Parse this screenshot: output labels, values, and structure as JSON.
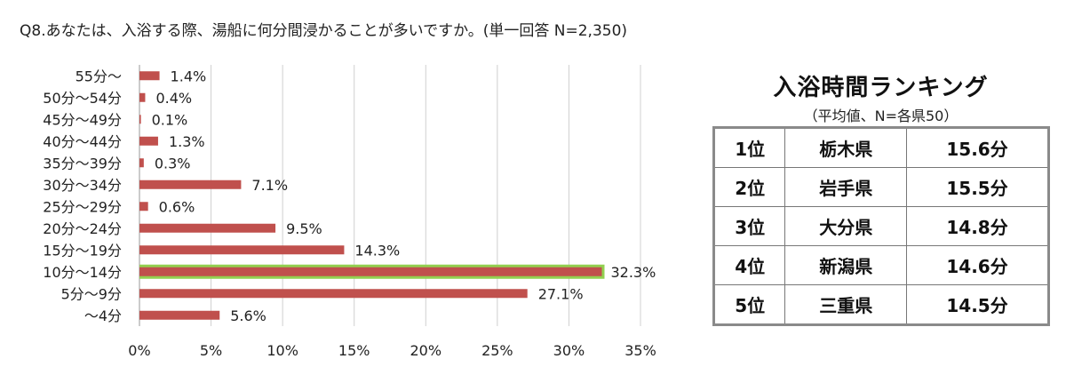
{
  "question": "Q8.あなたは、入浴する際、湯船に何分間浸かることが多いですか。(単一回答 N=2,350)",
  "chart_data": {
    "type": "bar",
    "orientation": "horizontal",
    "categories": [
      "55分～",
      "50分～54分",
      "45分～49分",
      "40分～44分",
      "35分～39分",
      "30分～34分",
      "25分～29分",
      "20分～24分",
      "15分～19分",
      "10分～14分",
      "5分～9分",
      "～4分"
    ],
    "values": [
      1.4,
      0.4,
      0.1,
      1.3,
      0.3,
      7.1,
      0.6,
      9.5,
      14.3,
      32.3,
      27.1,
      5.6
    ],
    "labels": [
      "1.4%",
      "0.4%",
      "0.1%",
      "1.3%",
      "0.3%",
      "7.1%",
      "0.6%",
      "9.5%",
      "14.3%",
      "32.3%",
      "27.1%",
      "5.6%"
    ],
    "xlim": [
      0,
      35
    ],
    "xticks": [
      0,
      5,
      10,
      15,
      20,
      25,
      30,
      35
    ],
    "xtick_labels": [
      "0%",
      "5%",
      "10%",
      "15%",
      "20%",
      "25%",
      "30%",
      "35%"
    ],
    "highlight_category": "10分～14分",
    "grid": true,
    "colors": {
      "bar": "#c0504d",
      "highlight_outline": "#92d050",
      "grid": "#d0d0d0"
    }
  },
  "ranking": {
    "title": "入浴時間ランキング",
    "subtitle": "（平均値、N=各県50）",
    "rows": [
      {
        "rank": "1位",
        "prefecture": "栃木県",
        "time": "15.6分"
      },
      {
        "rank": "2位",
        "prefecture": "岩手県",
        "time": "15.5分"
      },
      {
        "rank": "3位",
        "prefecture": "大分県",
        "time": "14.8分"
      },
      {
        "rank": "4位",
        "prefecture": "新潟県",
        "time": "14.6分"
      },
      {
        "rank": "5位",
        "prefecture": "三重県",
        "time": "14.5分"
      }
    ]
  }
}
